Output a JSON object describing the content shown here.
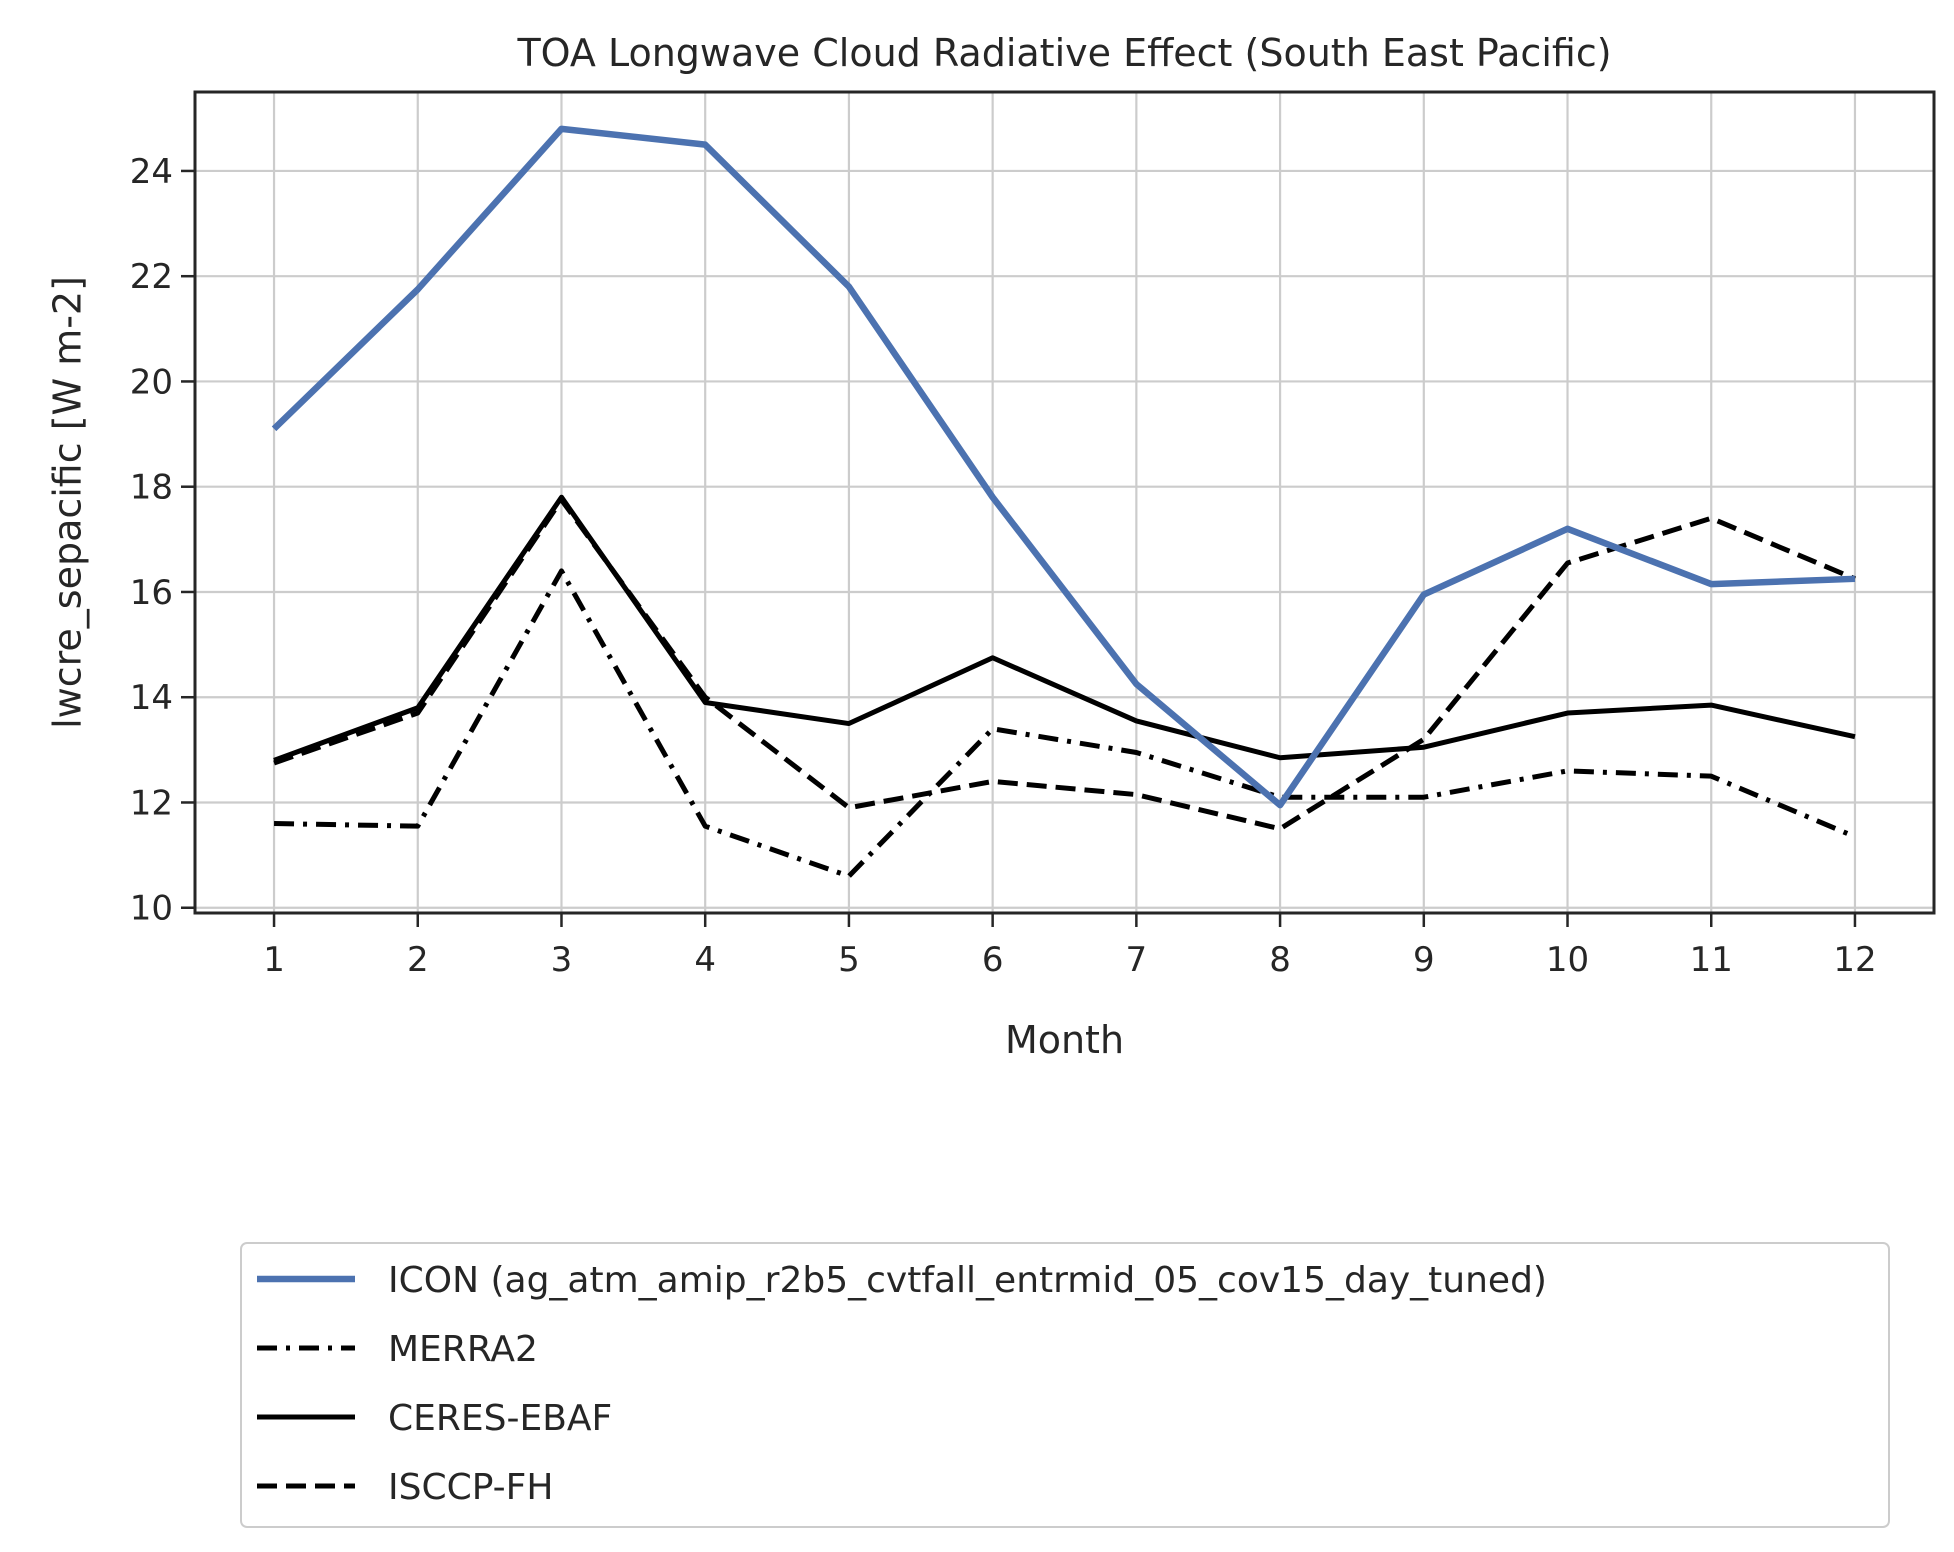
{
  "chart_data": {
    "type": "line",
    "title": "TOA Longwave Cloud Radiative Effect (South East Pacific)",
    "xlabel": "Month",
    "ylabel": "lwcre_sepacific [W m-2]",
    "x": [
      1,
      2,
      3,
      4,
      5,
      6,
      7,
      8,
      9,
      10,
      11,
      12
    ],
    "xticks": [
      "1",
      "2",
      "3",
      "4",
      "5",
      "6",
      "7",
      "8",
      "9",
      "10",
      "11",
      "12"
    ],
    "yticks": [
      "10",
      "12",
      "14",
      "16",
      "18",
      "20",
      "22",
      "24"
    ],
    "xlim": [
      0.45,
      12.55
    ],
    "ylim": [
      9.9,
      25.5
    ],
    "grid": true,
    "legend_position": "below plot",
    "series": [
      {
        "name": "ICON (ag_atm_amip_r2b5_cvtfall_entrmid_05_cov15_day_tuned)",
        "color": "#4c72b0",
        "style": "solid",
        "values": [
          19.1,
          21.75,
          24.8,
          24.5,
          21.8,
          17.8,
          14.25,
          11.95,
          15.95,
          17.2,
          16.15,
          16.25
        ]
      },
      {
        "name": "MERRA2",
        "color": "#000000",
        "style": "dashdot",
        "values": [
          11.6,
          11.55,
          16.4,
          11.55,
          10.6,
          13.4,
          12.95,
          12.1,
          12.1,
          12.6,
          12.5,
          11.35
        ]
      },
      {
        "name": "CERES-EBAF",
        "color": "#000000",
        "style": "solid",
        "values": [
          12.8,
          13.8,
          17.8,
          13.9,
          13.5,
          14.75,
          13.55,
          12.85,
          13.05,
          13.7,
          13.85,
          13.25
        ]
      },
      {
        "name": "ISCCP-FH",
        "color": "#000000",
        "style": "dashed",
        "values": [
          12.75,
          13.7,
          17.75,
          14.0,
          11.9,
          12.4,
          12.15,
          11.5,
          13.2,
          16.55,
          17.4,
          16.25
        ]
      }
    ]
  }
}
